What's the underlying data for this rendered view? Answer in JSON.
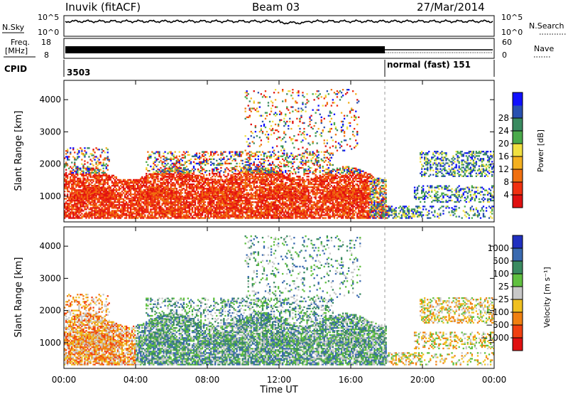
{
  "header": {
    "station": "Inuvik (fitACF)",
    "beam": "Beam 03",
    "date": "27/Mar/2014"
  },
  "top_panels": {
    "nsky_label": "N.Sky",
    "nsearch_label": "N.Search",
    "nsky_ticks": [
      "10^5",
      "10^0"
    ],
    "freq_label_1": "Freq.",
    "freq_label_2": "[MHz]",
    "freq_ticks": [
      "18",
      "8"
    ],
    "nave_label": "Nave",
    "nave_ticks": [
      "60",
      "0"
    ],
    "cpid_label": "CPID",
    "cpid_1": "3503",
    "cpid_2": "normal (fast) 151"
  },
  "chart_data": [
    {
      "type": "heatmap",
      "name": "power-panel",
      "ylabel": "Slant Range [km]",
      "yticks": [
        1000,
        2000,
        3000,
        4000
      ],
      "ylim": [
        200,
        4600
      ],
      "xlim_hours": [
        0,
        24
      ],
      "colorbar": {
        "label": "Power [dB]",
        "ticks": [
          "4",
          "8",
          "12",
          "16",
          "20",
          "24",
          "28"
        ],
        "colors": [
          "#1010ff",
          "#2850b0",
          "#3a8a60",
          "#4aaa4a",
          "#f0e040",
          "#f4b020",
          "#f07010",
          "#f03010",
          "#e01010"
        ]
      }
    },
    {
      "type": "heatmap",
      "name": "velocity-panel",
      "ylabel": "Slant Range [km]",
      "yticks": [
        1000,
        2000,
        3000,
        4000
      ],
      "ylim": [
        200,
        4600
      ],
      "xlim_hours": [
        0,
        24
      ],
      "colorbar": {
        "label": "Velocity [m s⁻¹]",
        "ticks": [
          "1000",
          "500",
          "100",
          "25",
          "−25",
          "−100",
          "−500",
          "−1000"
        ],
        "colors": [
          "#2030c0",
          "#3a6ab0",
          "#3a8a60",
          "#60c040",
          "#c8c8c8",
          "#f0c020",
          "#f08010",
          "#f04010",
          "#e01010"
        ]
      },
      "xticks": [
        "00:00",
        "04:00",
        "08:00",
        "12:00",
        "16:00",
        "20:00",
        "00:00"
      ],
      "xlabel": "Time UT"
    }
  ]
}
